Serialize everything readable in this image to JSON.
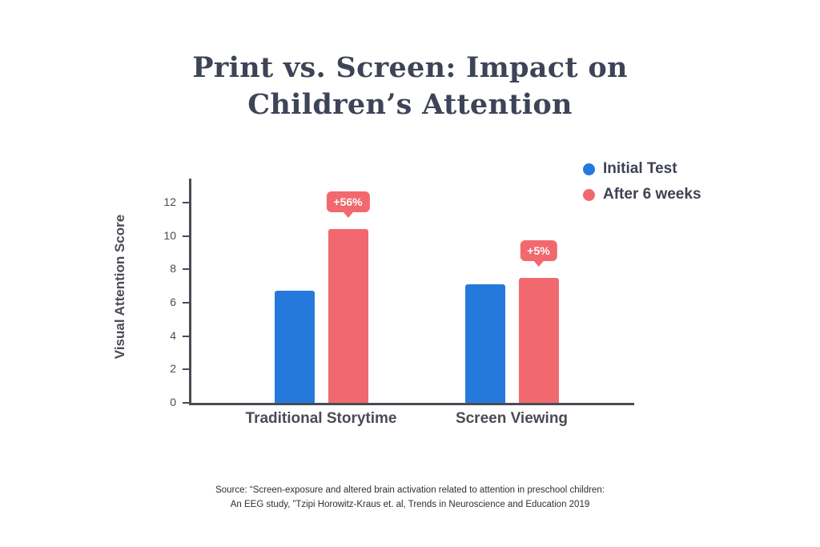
{
  "title": "Print vs. Screen: Impact on Children’s Attention",
  "colors": {
    "blue": "#2579dd",
    "red": "#f1696e",
    "title": "#3d4457",
    "axis": "#4b4b55",
    "source": "#2f2f33"
  },
  "chart_data": {
    "type": "bar",
    "categories": [
      "Traditional Storytime",
      "Screen Viewing"
    ],
    "series": [
      {
        "name": "Initial Test",
        "color": "#2579dd",
        "values": [
          6.7,
          7.1
        ]
      },
      {
        "name": "After 6 weeks",
        "color": "#f1696e",
        "values": [
          10.4,
          7.5
        ]
      }
    ],
    "annotations": [
      {
        "label": "+56%",
        "category": "Traditional Storytime",
        "series": "After 6 weeks"
      },
      {
        "label": "+5%",
        "category": "Screen Viewing",
        "series": "After 6 weeks"
      }
    ],
    "title": "Print vs. Screen: Impact on Children’s Attention",
    "xlabel": "",
    "ylabel": "Visual Attention Score",
    "ylim": [
      0,
      12
    ],
    "yticks": [
      0,
      2,
      4,
      6,
      8,
      10,
      12
    ],
    "grid": false,
    "legend_position": "top-right"
  },
  "source": {
    "line1": "Source: “Screen-exposure and altered brain activation related to attention in preschool children:",
    "line2": "An EEG study, ”Tzipi Horowitz-Kraus et. al,  Trends in Neuroscience and Education 2019"
  }
}
